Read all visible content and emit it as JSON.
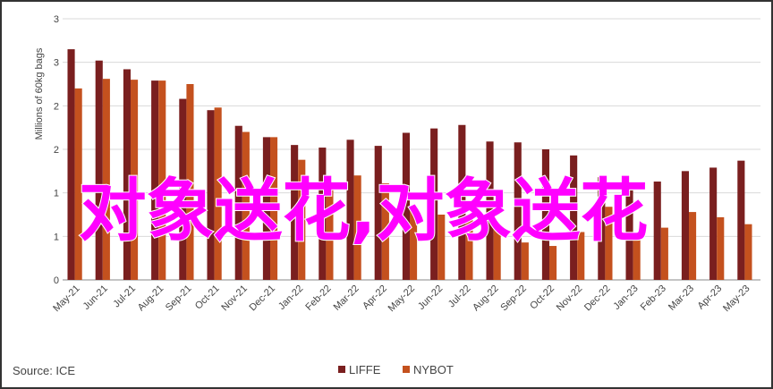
{
  "chart_data": {
    "type": "bar",
    "y_label": "Millions of 60kg bags",
    "source": "Source: ICE",
    "annotation": "对象送花,对象送花",
    "categories": [
      "May-21",
      "Jun-21",
      "Jul-21",
      "Aug-21",
      "Sep-21",
      "Oct-21",
      "Nov-21",
      "Dec-21",
      "Jan-22",
      "Feb-22",
      "Mar-22",
      "Apr-22",
      "May-22",
      "Jun-22",
      "Jul-22",
      "Aug-22",
      "Sep-22",
      "Oct-22",
      "Nov-22",
      "Dec-22",
      "Jan-23",
      "Feb-23",
      "Mar-23",
      "Apr-23",
      "May-23"
    ],
    "series": [
      {
        "name": "LIFFE",
        "color": "#7a1f1f",
        "values": [
          2.65,
          2.52,
          2.42,
          2.29,
          2.08,
          1.95,
          1.77,
          1.64,
          1.55,
          1.52,
          1.61,
          1.54,
          1.69,
          1.74,
          1.78,
          1.59,
          1.58,
          1.5,
          1.43,
          1.18,
          1.03,
          1.13,
          1.25,
          1.29,
          1.37
        ]
      },
      {
        "name": "NYBOT",
        "color": "#c4511e",
        "values": [
          2.2,
          2.31,
          2.3,
          2.29,
          2.25,
          1.98,
          1.7,
          1.64,
          1.38,
          1.06,
          1.2,
          1.11,
          0.85,
          0.75,
          0.7,
          0.6,
          0.43,
          0.39,
          0.55,
          0.84,
          0.54,
          0.6,
          0.78,
          0.72,
          0.64
        ]
      }
    ],
    "ylim": [
      0,
      3
    ],
    "yticks": [
      0,
      {
        "value": 0.5,
        "label": "1"
      },
      1,
      {
        "value": 1.5,
        "label": "2"
      },
      2,
      {
        "value": 2.5,
        "label": "3"
      },
      3
    ],
    "grid": true,
    "legend": "bottom"
  }
}
